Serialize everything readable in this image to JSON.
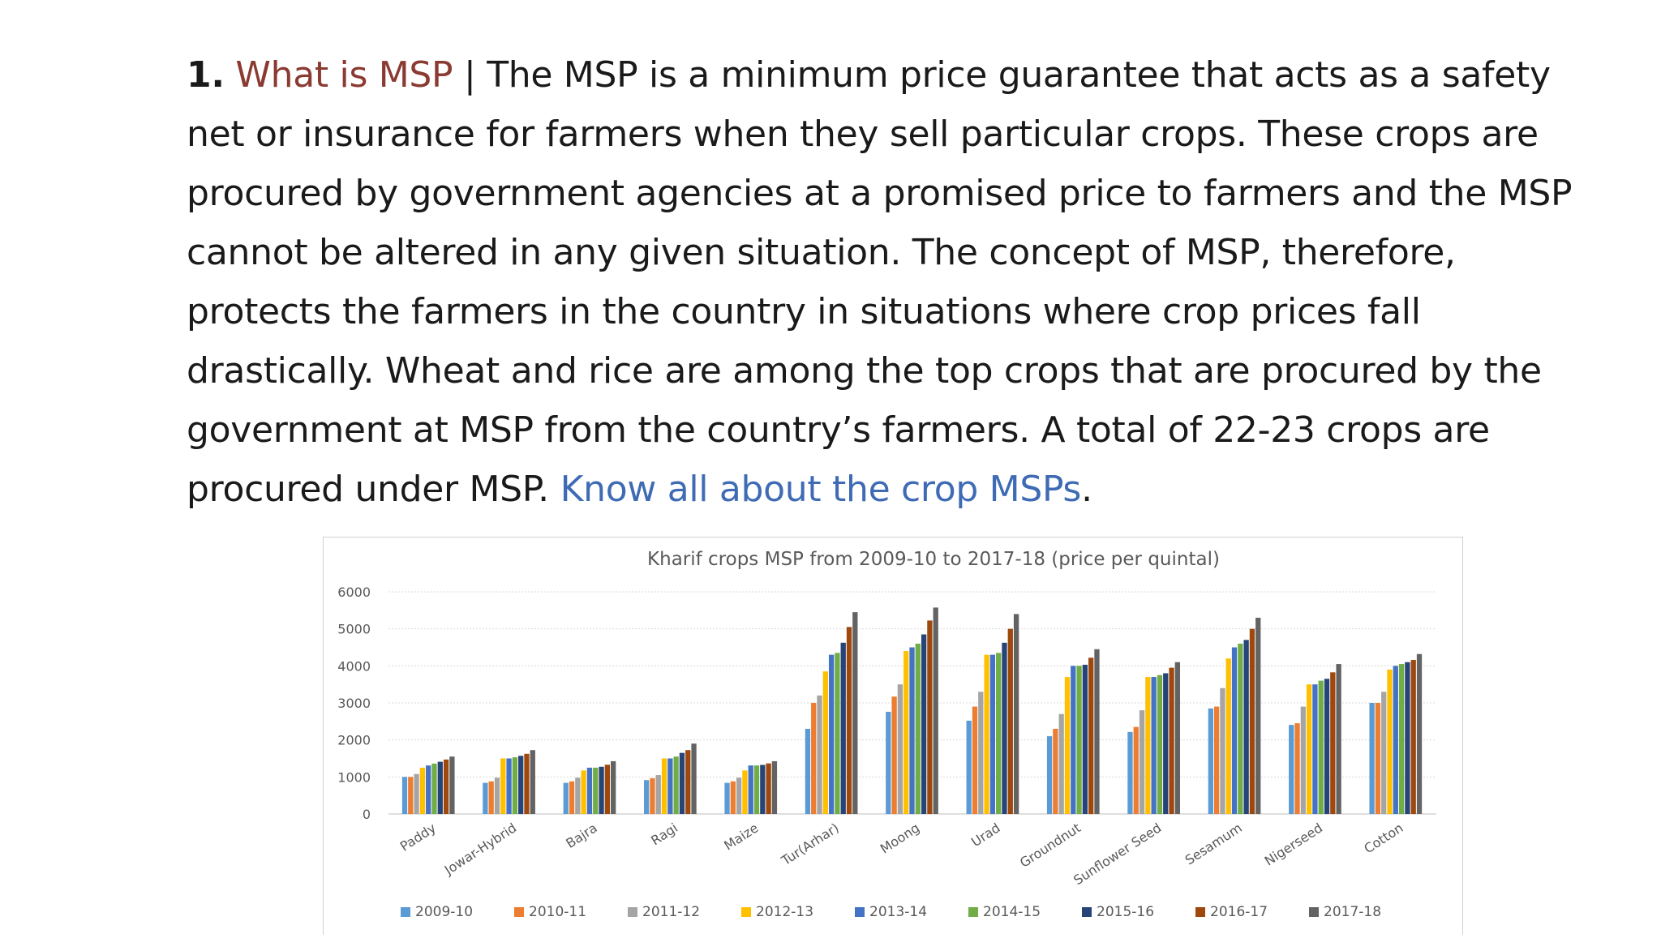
{
  "article": {
    "number": "1.",
    "heading": "What is MSP",
    "separator": "|",
    "body": "The MSP is a minimum price guarantee that acts as a safety net or insurance for farmers when they sell particular crops. These crops are procured by government agencies at a promised price to farmers and the MSP cannot be altered in any given situation. The concept of MSP, therefore, protects the farmers in the country in situations where crop prices fall drastically. Wheat and rice are among the top crops that are procured by the government at MSP from the country’s farmers. A total of 22-23 crops are procured under MSP.",
    "link_text": "Know all about the crop MSPs",
    "trailing": "."
  },
  "chart_data": {
    "type": "bar",
    "title": "Kharif crops MSP from 2009-10 to 2017-18 (price per quintal)",
    "xlabel": "",
    "ylabel": "",
    "ylim": [
      0,
      6000
    ],
    "yticks": [
      0,
      1000,
      2000,
      3000,
      4000,
      5000,
      6000
    ],
    "grid": true,
    "legend": "bottom",
    "categories": [
      "Paddy",
      "Jowar-Hybrid",
      "Bajra",
      "Ragi",
      "Maize",
      "Tur(Arhar)",
      "Moong",
      "Urad",
      "Groundnut",
      "Sunflower Seed",
      "Sesamum",
      "Nigerseed",
      "Cotton"
    ],
    "series": [
      {
        "name": "2009-10",
        "color": "#5b9bd5",
        "values": [
          1000,
          840,
          840,
          915,
          840,
          2300,
          2760,
          2520,
          2100,
          2215,
          2850,
          2405,
          3000
        ]
      },
      {
        "name": "2010-11",
        "color": "#ed7d31",
        "values": [
          1000,
          880,
          880,
          965,
          880,
          3000,
          3170,
          2900,
          2300,
          2350,
          2900,
          2450,
          3000
        ]
      },
      {
        "name": "2011-12",
        "color": "#a5a5a5",
        "values": [
          1080,
          980,
          980,
          1050,
          980,
          3200,
          3500,
          3300,
          2700,
          2800,
          3400,
          2900,
          3300
        ]
      },
      {
        "name": "2012-13",
        "color": "#ffc000",
        "values": [
          1250,
          1500,
          1175,
          1500,
          1175,
          3850,
          4400,
          4300,
          3700,
          3700,
          4200,
          3500,
          3900
        ]
      },
      {
        "name": "2013-14",
        "color": "#4472c4",
        "values": [
          1310,
          1500,
          1250,
          1500,
          1310,
          4300,
          4500,
          4300,
          4000,
          3700,
          4500,
          3500,
          4000
        ]
      },
      {
        "name": "2014-15",
        "color": "#70ad47",
        "values": [
          1360,
          1530,
          1250,
          1550,
          1310,
          4350,
          4600,
          4350,
          4000,
          3750,
          4600,
          3600,
          4050
        ]
      },
      {
        "name": "2015-16",
        "color": "#264478",
        "values": [
          1410,
          1570,
          1275,
          1650,
          1325,
          4625,
          4850,
          4625,
          4030,
          3800,
          4700,
          3650,
          4100
        ]
      },
      {
        "name": "2016-17",
        "color": "#9e480e",
        "values": [
          1470,
          1625,
          1330,
          1725,
          1365,
          5050,
          5225,
          5000,
          4220,
          3950,
          5000,
          3825,
          4160
        ]
      },
      {
        "name": "2017-18",
        "color": "#636363",
        "values": [
          1550,
          1725,
          1425,
          1900,
          1425,
          5450,
          5575,
          5400,
          4450,
          4100,
          5300,
          4050,
          4320
        ]
      }
    ]
  }
}
